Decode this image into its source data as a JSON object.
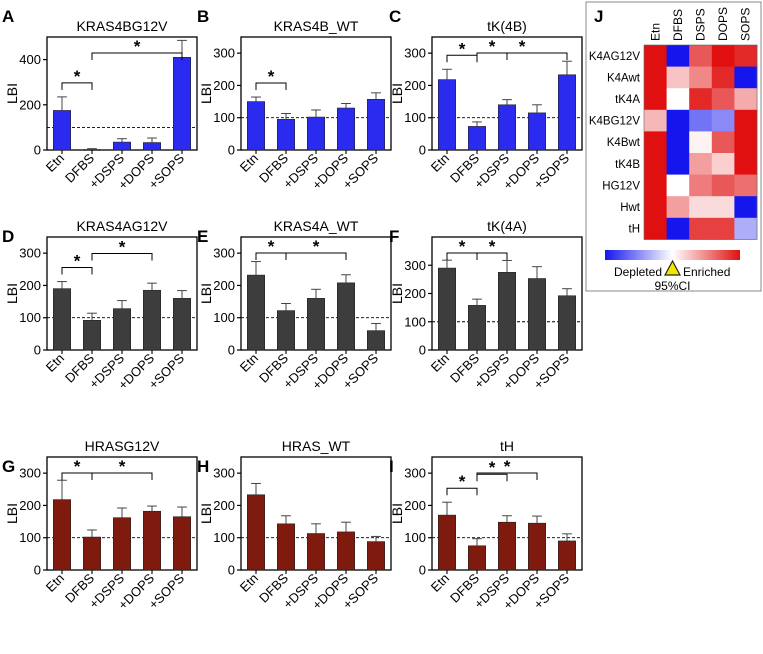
{
  "categories": [
    "Etn",
    "DFBS",
    "+DSPS",
    "+DOPS",
    "+SOPS"
  ],
  "chart_data": [
    {
      "type": "bar",
      "panel_label": "A",
      "title": "KRAS4BG12V",
      "ylabel": "LBI",
      "color": "#2b2bf0",
      "categories": [
        "Etn",
        "DFBS",
        "+DSPS",
        "+DOPS",
        "+SOPS"
      ],
      "values": [
        175,
        2,
        35,
        33,
        410
      ],
      "errors": [
        60,
        4,
        15,
        20,
        75
      ],
      "ylim": [
        0,
        500
      ],
      "yticks": [
        0,
        200,
        400
      ],
      "baseline": 100,
      "significance": [
        {
          "from": 0,
          "to": 1,
          "label": "*"
        },
        {
          "from": 1,
          "to": 4,
          "label": "*"
        }
      ]
    },
    {
      "type": "bar",
      "panel_label": "B",
      "title": "KRAS4B_WT",
      "ylabel": "LBI",
      "color": "#2b2bf0",
      "categories": [
        "Etn",
        "DFBS",
        "+DSPS",
        "+DOPS",
        "+SOPS"
      ],
      "values": [
        150,
        95,
        102,
        130,
        157
      ],
      "errors": [
        14,
        18,
        22,
        14,
        20
      ],
      "ylim": [
        0,
        350
      ],
      "yticks": [
        0,
        100,
        200,
        300
      ],
      "baseline": 100,
      "significance": [
        {
          "from": 0,
          "to": 1,
          "label": "*"
        }
      ]
    },
    {
      "type": "bar",
      "panel_label": "C",
      "title": "tK(4B)",
      "ylabel": "LBI",
      "color": "#2b2bf0",
      "categories": [
        "Etn",
        "DFBS",
        "+DSPS",
        "+DOPS",
        "+SOPS"
      ],
      "values": [
        218,
        73,
        140,
        115,
        233
      ],
      "errors": [
        32,
        14,
        16,
        25,
        42
      ],
      "ylim": [
        0,
        350
      ],
      "yticks": [
        0,
        100,
        200,
        300
      ],
      "baseline": 100,
      "significance": [
        {
          "from": 0,
          "to": 1,
          "label": "*"
        },
        {
          "from": 1,
          "to": 2,
          "label": "*"
        },
        {
          "from": 1,
          "to": 4,
          "label": "*"
        }
      ]
    },
    {
      "type": "bar",
      "panel_label": "D",
      "title": "KRAS4AG12V",
      "ylabel": "LBI",
      "color": "#3d3d3d",
      "categories": [
        "Etn",
        "DFBS",
        "+DSPS",
        "+DOPS",
        "+SOPS"
      ],
      "values": [
        190,
        92,
        128,
        185,
        160
      ],
      "errors": [
        22,
        22,
        25,
        22,
        24
      ],
      "ylim": [
        0,
        350
      ],
      "yticks": [
        0,
        100,
        200,
        300
      ],
      "baseline": 100,
      "significance": [
        {
          "from": 0,
          "to": 1,
          "label": "*"
        },
        {
          "from": 1,
          "to": 3,
          "label": "*"
        }
      ]
    },
    {
      "type": "bar",
      "panel_label": "E",
      "title": "KRAS4A_WT",
      "ylabel": "LBI",
      "color": "#3d3d3d",
      "categories": [
        "Etn",
        "DFBS",
        "+DSPS",
        "+DOPS",
        "+SOPS"
      ],
      "values": [
        232,
        122,
        160,
        208,
        60
      ],
      "errors": [
        42,
        22,
        28,
        25,
        22
      ],
      "ylim": [
        0,
        350
      ],
      "yticks": [
        0,
        100,
        200,
        300
      ],
      "baseline": 100,
      "significance": [
        {
          "from": 0,
          "to": 1,
          "label": "*"
        },
        {
          "from": 1,
          "to": 3,
          "label": "*"
        }
      ]
    },
    {
      "type": "bar",
      "panel_label": "F",
      "title": "tK(4A)",
      "ylabel": "LBI",
      "color": "#3d3d3d",
      "categories": [
        "Etn",
        "DFBS",
        "+DSPS",
        "+DOPS",
        "+SOPS"
      ],
      "values": [
        290,
        158,
        275,
        253,
        192
      ],
      "errors": [
        28,
        22,
        42,
        42,
        25
      ],
      "ylim": [
        0,
        400
      ],
      "yticks": [
        0,
        100,
        200,
        300
      ],
      "baseline": 100,
      "significance": [
        {
          "from": 0,
          "to": 1,
          "label": "*"
        },
        {
          "from": 1,
          "to": 2,
          "label": "*"
        }
      ]
    },
    {
      "type": "bar",
      "panel_label": "G",
      "title": "HRASG12V",
      "ylabel": "LBI",
      "color": "#7f1a0e",
      "categories": [
        "Etn",
        "DFBS",
        "+DSPS",
        "+DOPS",
        "+SOPS"
      ],
      "values": [
        218,
        102,
        162,
        182,
        165
      ],
      "errors": [
        60,
        22,
        30,
        16,
        30
      ],
      "ylim": [
        0,
        350
      ],
      "yticks": [
        0,
        100,
        200,
        300
      ],
      "baseline": 100,
      "significance": [
        {
          "from": 0,
          "to": 1,
          "label": "*"
        },
        {
          "from": 1,
          "to": 3,
          "label": "*"
        }
      ]
    },
    {
      "type": "bar",
      "panel_label": "H",
      "title": "HRAS_WT",
      "ylabel": "LBI",
      "color": "#7f1a0e",
      "categories": [
        "Etn",
        "DFBS",
        "+DSPS",
        "+DOPS",
        "+SOPS"
      ],
      "values": [
        233,
        143,
        113,
        118,
        88
      ],
      "errors": [
        35,
        25,
        30,
        30,
        16
      ],
      "ylim": [
        0,
        350
      ],
      "yticks": [
        0,
        100,
        200,
        300
      ],
      "baseline": 100,
      "significance": []
    },
    {
      "type": "bar",
      "panel_label": "I",
      "title": "tH",
      "ylabel": "LBI",
      "color": "#7f1a0e",
      "categories": [
        "Etn",
        "DFBS",
        "+DSPS",
        "+DOPS",
        "+SOPS"
      ],
      "values": [
        170,
        75,
        148,
        145,
        90
      ],
      "errors": [
        40,
        22,
        20,
        22,
        22
      ],
      "ylim": [
        0,
        350
      ],
      "yticks": [
        0,
        100,
        200,
        300
      ],
      "baseline": 100,
      "significance": [
        {
          "from": 0,
          "to": 1,
          "label": "*"
        },
        {
          "from": 1,
          "to": 2,
          "label": "*"
        },
        {
          "from": 1,
          "to": 3,
          "label": "*"
        }
      ]
    },
    {
      "type": "heatmap",
      "panel_label": "J",
      "columns": [
        "Etn",
        "DFBS",
        "DSPS",
        "DOPS",
        "SOPS"
      ],
      "rows": [
        "K4AG12V",
        "K4Awt",
        "tK4A",
        "K4BG12V",
        "K4Bwt",
        "tK4B",
        "HG12V",
        "Hwt",
        "tH"
      ],
      "values": [
        [
          1.0,
          -1.0,
          0.7,
          1.0,
          0.9
        ],
        [
          1.0,
          0.25,
          0.5,
          0.9,
          -1.0
        ],
        [
          1.0,
          0.0,
          0.9,
          0.7,
          0.35
        ],
        [
          0.3,
          -1.0,
          -0.6,
          -0.5,
          1.0
        ],
        [
          1.0,
          -1.0,
          0.05,
          0.7,
          1.0
        ],
        [
          1.0,
          -1.0,
          0.4,
          0.2,
          1.0
        ],
        [
          1.0,
          0.0,
          0.55,
          0.7,
          0.6
        ],
        [
          1.0,
          0.4,
          0.15,
          0.15,
          -1.0
        ],
        [
          1.0,
          -1.0,
          0.8,
          0.8,
          -0.35
        ]
      ],
      "colorbar": {
        "low_label": "Depleted",
        "high_label": "Enriched",
        "ci_label": "95%CI",
        "low_color": "#1515ee",
        "mid_color": "#ffffff",
        "high_color": "#e01010"
      }
    }
  ]
}
